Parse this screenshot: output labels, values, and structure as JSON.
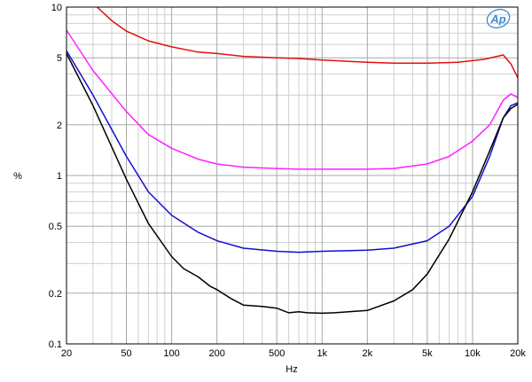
{
  "chart_data": {
    "type": "line",
    "xlabel": "Hz",
    "ylabel": "%",
    "x_scale": "log",
    "y_scale": "log",
    "xlim": [
      20,
      20000
    ],
    "ylim": [
      0.1,
      10
    ],
    "x_ticks": [
      {
        "value": 20,
        "label": "20"
      },
      {
        "value": 50,
        "label": "50"
      },
      {
        "value": 100,
        "label": "100"
      },
      {
        "value": 200,
        "label": "200"
      },
      {
        "value": 500,
        "label": "500"
      },
      {
        "value": 1000,
        "label": "1k"
      },
      {
        "value": 2000,
        "label": "2k"
      },
      {
        "value": 5000,
        "label": "5k"
      },
      {
        "value": 10000,
        "label": "10k"
      },
      {
        "value": 20000,
        "label": "20k"
      }
    ],
    "y_ticks": [
      {
        "value": 0.1,
        "label": "0.1"
      },
      {
        "value": 0.2,
        "label": "0.2"
      },
      {
        "value": 0.5,
        "label": "0.5"
      },
      {
        "value": 1,
        "label": "1"
      },
      {
        "value": 2,
        "label": "2"
      },
      {
        "value": 5,
        "label": "5"
      },
      {
        "value": 10,
        "label": "10"
      }
    ],
    "grid": true,
    "logo": "Ap",
    "series": [
      {
        "color": "#e01010",
        "x": [
          32,
          40,
          50,
          70,
          100,
          150,
          200,
          300,
          500,
          700,
          1000,
          2000,
          3000,
          5000,
          8000,
          12000,
          16000,
          18000,
          20000
        ],
        "y": [
          10,
          8.3,
          7.2,
          6.3,
          5.8,
          5.4,
          5.3,
          5.1,
          5.0,
          4.95,
          4.85,
          4.7,
          4.65,
          4.65,
          4.7,
          4.9,
          5.2,
          4.6,
          3.8
        ]
      },
      {
        "color": "#ff20ff",
        "x": [
          20,
          30,
          50,
          70,
          100,
          150,
          200,
          300,
          500,
          700,
          1000,
          2000,
          3000,
          5000,
          7000,
          10000,
          13000,
          16000,
          18000,
          20000
        ],
        "y": [
          7.3,
          4.2,
          2.4,
          1.75,
          1.45,
          1.25,
          1.17,
          1.12,
          1.1,
          1.09,
          1.09,
          1.09,
          1.1,
          1.17,
          1.3,
          1.6,
          2.0,
          2.8,
          3.05,
          2.9
        ]
      },
      {
        "color": "#1010d0",
        "x": [
          20,
          30,
          50,
          70,
          100,
          150,
          200,
          300,
          500,
          700,
          1000,
          2000,
          3000,
          5000,
          7000,
          10000,
          13000,
          16000,
          18000,
          20000
        ],
        "y": [
          5.5,
          3.0,
          1.3,
          0.8,
          0.58,
          0.46,
          0.41,
          0.37,
          0.355,
          0.35,
          0.355,
          0.36,
          0.37,
          0.41,
          0.5,
          0.75,
          1.3,
          2.2,
          2.6,
          2.7
        ]
      },
      {
        "color": "#000000",
        "x": [
          20,
          30,
          50,
          70,
          100,
          120,
          150,
          180,
          200,
          250,
          300,
          400,
          500,
          600,
          700,
          800,
          1000,
          1200,
          1500,
          2000,
          3000,
          4000,
          5000,
          7000,
          10000,
          13000,
          16000,
          18000,
          20000
        ],
        "y": [
          5.3,
          2.6,
          0.95,
          0.52,
          0.33,
          0.28,
          0.25,
          0.22,
          0.21,
          0.185,
          0.17,
          0.167,
          0.163,
          0.153,
          0.155,
          0.153,
          0.152,
          0.153,
          0.155,
          0.158,
          0.18,
          0.21,
          0.26,
          0.42,
          0.8,
          1.4,
          2.2,
          2.5,
          2.65
        ]
      }
    ]
  }
}
